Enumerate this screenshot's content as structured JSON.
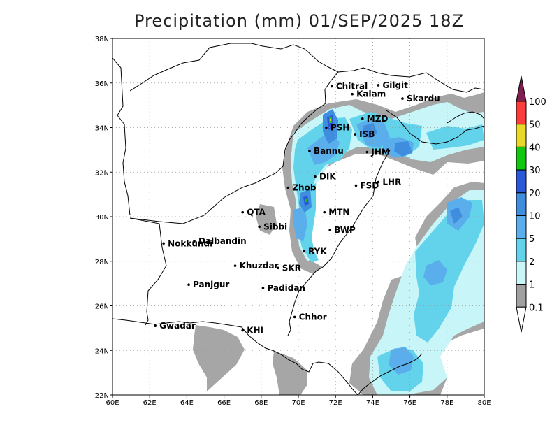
{
  "title": "Precipitation (mm) 01/SEP/2025 18Z",
  "map": {
    "lon_range": [
      60,
      80
    ],
    "lat_range": [
      22,
      38
    ],
    "x_ticks": [
      "60E",
      "62E",
      "64E",
      "66E",
      "68E",
      "70E",
      "72E",
      "74E",
      "76E",
      "78E",
      "80E"
    ],
    "y_ticks": [
      "22N",
      "24N",
      "26N",
      "28N",
      "30N",
      "32N",
      "34N",
      "36N",
      "38N"
    ],
    "grid": "dotted"
  },
  "cities": [
    {
      "name": "Chitral",
      "lon": 71.8,
      "lat": 35.85
    },
    {
      "name": "Gilgit",
      "lon": 74.3,
      "lat": 35.9
    },
    {
      "name": "Kalam",
      "lon": 72.9,
      "lat": 35.5
    },
    {
      "name": "Skardu",
      "lon": 75.6,
      "lat": 35.3
    },
    {
      "name": "MZD",
      "lon": 73.45,
      "lat": 34.4
    },
    {
      "name": "PSH",
      "lon": 71.5,
      "lat": 34.0
    },
    {
      "name": "ISB",
      "lon": 73.05,
      "lat": 33.7
    },
    {
      "name": "JHM",
      "lon": 73.7,
      "lat": 32.9
    },
    {
      "name": "Bannu",
      "lon": 70.6,
      "lat": 32.95
    },
    {
      "name": "DIK",
      "lon": 70.9,
      "lat": 31.8
    },
    {
      "name": "FSD",
      "lon": 73.1,
      "lat": 31.4
    },
    {
      "name": "LHR",
      "lon": 74.3,
      "lat": 31.55
    },
    {
      "name": "Zhob",
      "lon": 69.45,
      "lat": 31.3
    },
    {
      "name": "QTA",
      "lon": 67.0,
      "lat": 30.2
    },
    {
      "name": "MTN",
      "lon": 71.4,
      "lat": 30.2
    },
    {
      "name": "Sibbi",
      "lon": 67.9,
      "lat": 29.55
    },
    {
      "name": "BWP",
      "lon": 71.7,
      "lat": 29.4
    },
    {
      "name": "Dalbandin",
      "lon": 64.4,
      "lat": 28.9
    },
    {
      "name": "Nokkundi",
      "lon": 62.75,
      "lat": 28.8
    },
    {
      "name": "RYK",
      "lon": 70.3,
      "lat": 28.45
    },
    {
      "name": "SKR",
      "lon": 68.9,
      "lat": 27.7
    },
    {
      "name": "Khuzdar",
      "lon": 66.6,
      "lat": 27.8
    },
    {
      "name": "Panjgur",
      "lon": 64.1,
      "lat": 26.95
    },
    {
      "name": "Padidan",
      "lon": 68.1,
      "lat": 26.8
    },
    {
      "name": "Chhor",
      "lon": 69.8,
      "lat": 25.5
    },
    {
      "name": "KHI",
      "lon": 67.0,
      "lat": 24.9
    },
    {
      "name": "Gwadar",
      "lon": 62.3,
      "lat": 25.1
    }
  ],
  "colorbar": {
    "levels": [
      "100",
      "50",
      "40",
      "30",
      "20",
      "10",
      "5",
      "2",
      "1",
      "0.1"
    ],
    "colors": [
      "#7f1f4f",
      "#ff3c3c",
      "#e8d829",
      "#12c712",
      "#2b58d8",
      "#3f8ddf",
      "#5aaeec",
      "#63d3ec",
      "#c8f6f8",
      "#a0a0a0",
      "#ffffff"
    ]
  },
  "precip_colors": {
    "light": "#a6a6a6",
    "cyan_pale": "#c8f6f8",
    "cyan": "#63d3ec",
    "sky": "#5aaeec",
    "blue": "#3f8ddf",
    "deep": "#2b58d8",
    "green": "#12c712",
    "yellow": "#e8d829"
  }
}
